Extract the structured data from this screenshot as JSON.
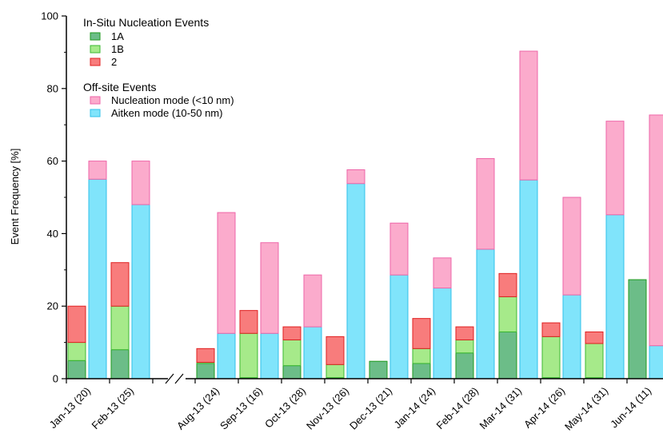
{
  "chart_data": {
    "type": "bar",
    "title": "",
    "xlabel": "",
    "ylabel": "Event Frequency [%]",
    "ylim": [
      0,
      100
    ],
    "yticks": [
      0,
      20,
      40,
      60,
      80,
      100
    ],
    "grid": false,
    "axis_break": "//",
    "legend_position": "top-left",
    "legend": {
      "insitu_heading": "In-Situ Nucleation Events",
      "offsite_heading": "Off-site Events",
      "insitu_items": [
        "1A",
        "1B",
        "2"
      ],
      "offsite_items": [
        "Nucleation mode (<10 nm)",
        "Aitken mode (10-50 nm)"
      ]
    },
    "categories": [
      "Jan-13 (20)",
      "Feb-13 (25)",
      "Aug-13 (24)",
      "Sep-13 (16)",
      "Oct-13 (28)",
      "Nov-13 (26)",
      "Dec-13 (21)",
      "Jan-14 (24)",
      "Feb-14 (28)",
      "Mar-14 (31)",
      "Apr-14 (26)",
      "May-14 (31)",
      "Jun-14 (11)"
    ],
    "series": [
      {
        "name": "1A",
        "stack": "insitu",
        "values": [
          5,
          8,
          4.2,
          0.3,
          3.6,
          0.3,
          4.8,
          4.2,
          7.1,
          12.9,
          0.3,
          0.3,
          27.3
        ],
        "color": "#6cbd88",
        "stroke": "#1e9a1e"
      },
      {
        "name": "1B",
        "stack": "insitu",
        "values": [
          5,
          12,
          0.3,
          12.2,
          7.1,
          3.6,
          0,
          4.1,
          3.6,
          9.7,
          11.3,
          9.4,
          0
        ],
        "color": "#a6ea8a",
        "stroke": "#3cb833"
      },
      {
        "name": "2",
        "stack": "insitu",
        "values": [
          10,
          12,
          3.8,
          6.3,
          3.6,
          7.7,
          0,
          8.3,
          3.6,
          6.4,
          3.8,
          3.2,
          0
        ],
        "color": "#f87c7c",
        "stroke": "#e02020"
      },
      {
        "name": "Aitken mode (10-50 nm)",
        "stack": "offsite",
        "values": [
          55,
          48,
          12.5,
          12.5,
          14.3,
          53.8,
          28.6,
          25,
          35.7,
          54.8,
          23.1,
          45.2,
          9.1
        ],
        "color": "#80e4fb",
        "stroke": "#30c0e8"
      },
      {
        "name": "Nucleation mode (<10 nm)",
        "stack": "offsite",
        "values": [
          5,
          12,
          33.3,
          25,
          14.3,
          3.8,
          14.3,
          8.3,
          25,
          35.5,
          26.9,
          25.8,
          63.6
        ],
        "color": "#fbabcc",
        "stroke": "#ee66a8"
      }
    ]
  }
}
